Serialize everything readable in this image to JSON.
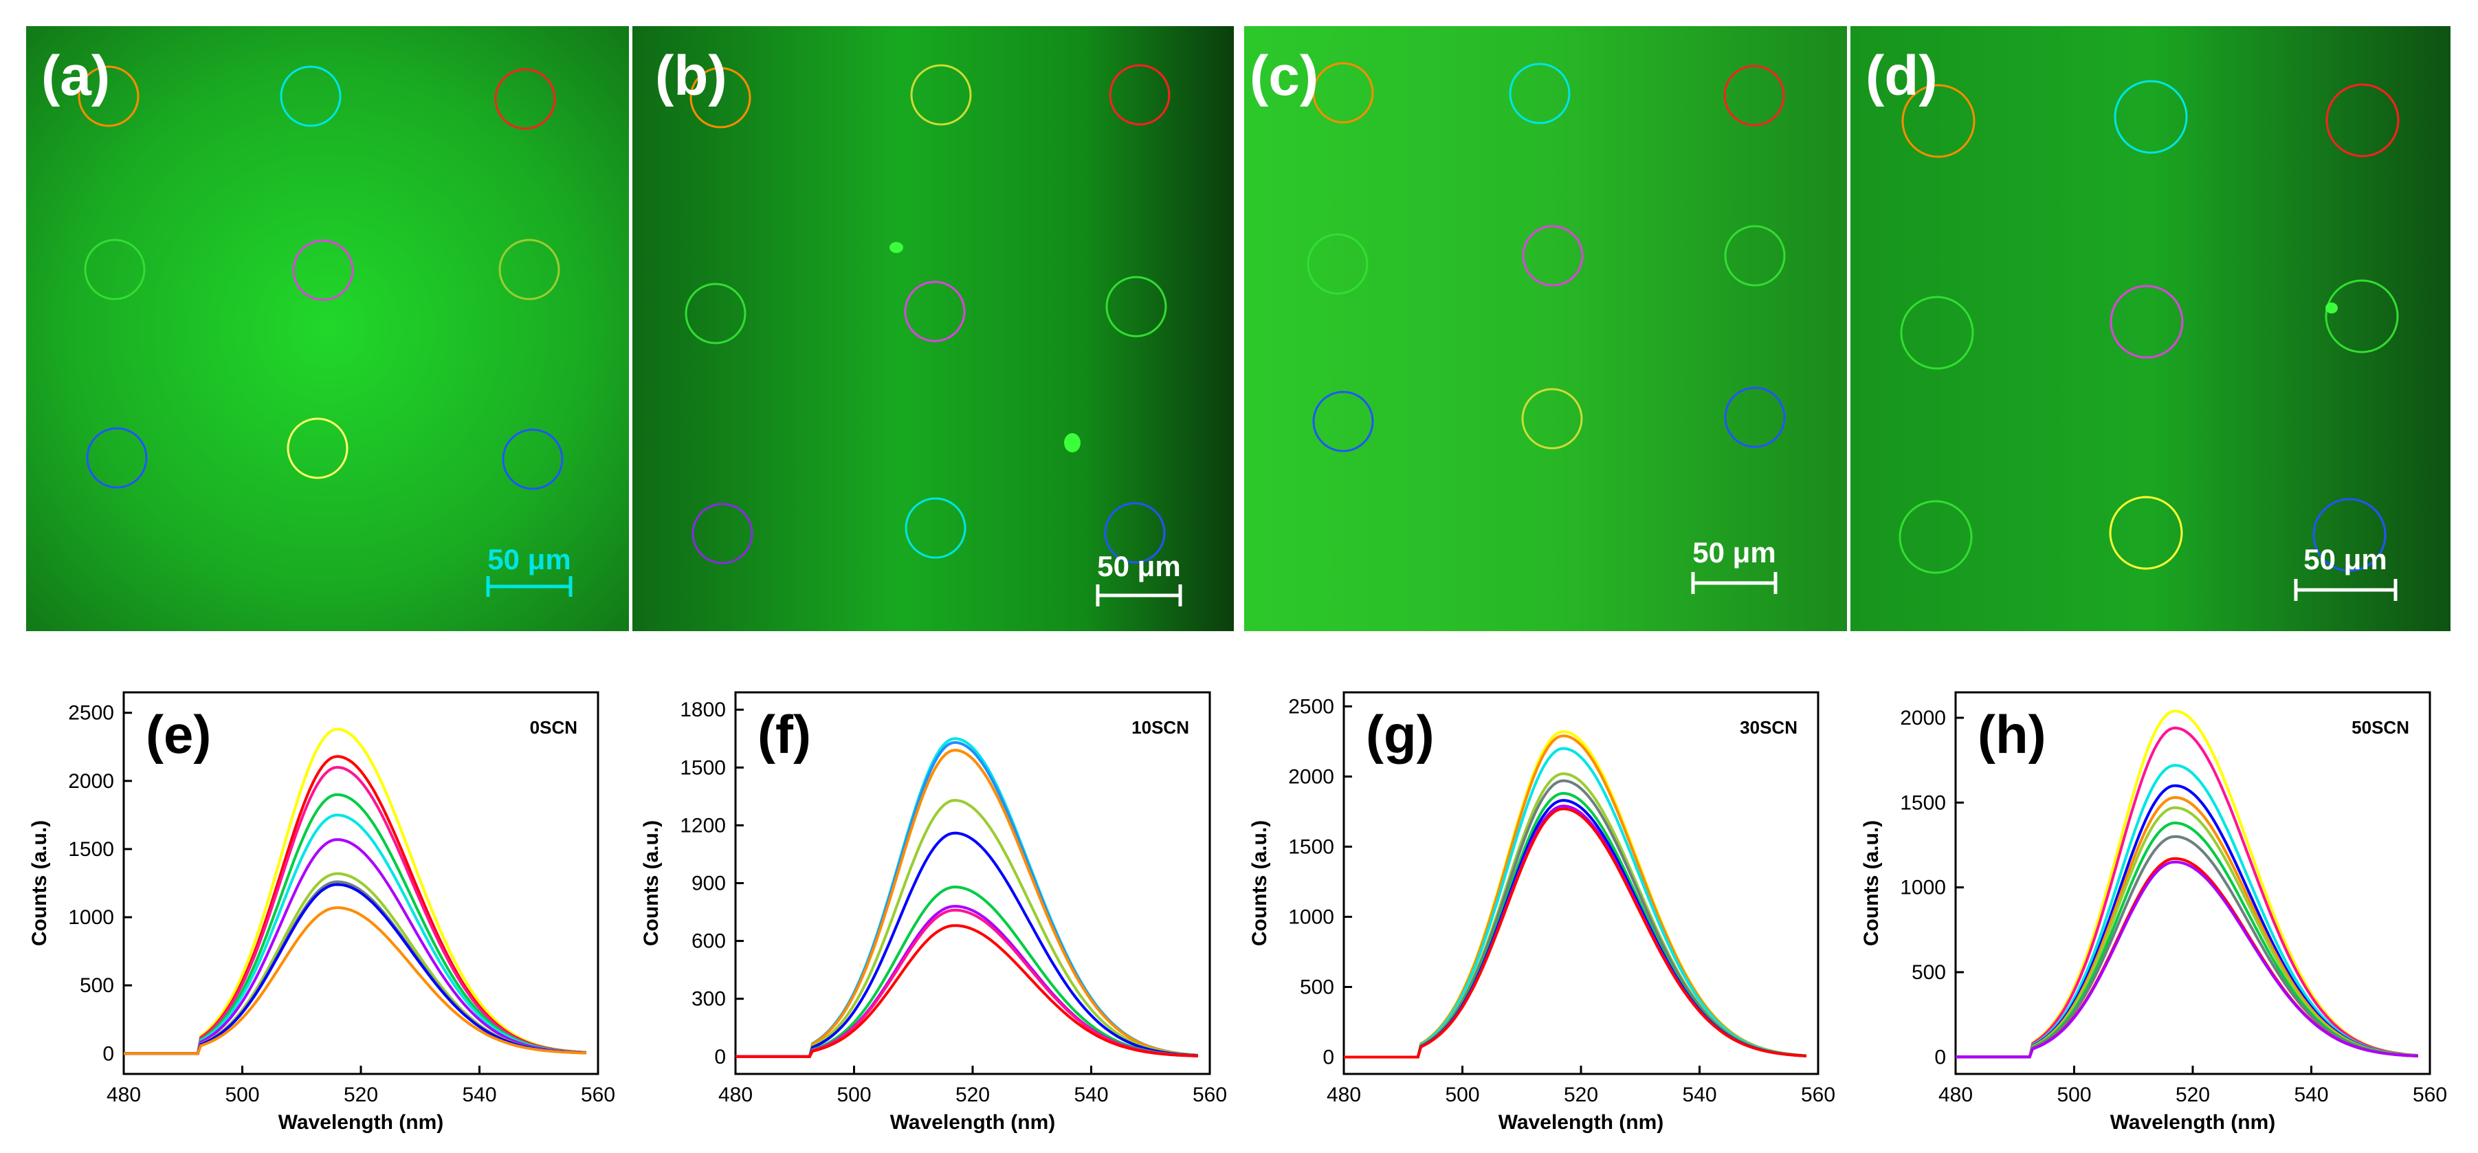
{
  "colors": {
    "frame_a": "#1e7d24",
    "frame_b": "#145c1a",
    "frame_c": "#2e9a2e",
    "frame_d": "#1a6a1e",
    "roi": [
      "#ff8c00",
      "#00e5e5",
      "#ff2020",
      "#33dd33",
      "#dd44dd",
      "#9acd32",
      "#2255ff",
      "#ffff33",
      "#8a2be2"
    ],
    "spectra": [
      "#ffff00",
      "#ff0000",
      "#ff1493",
      "#00cc44",
      "#00e5e5",
      "#aa00ff",
      "#0000ff",
      "#9acd32",
      "#6e7f80",
      "#ff8c00"
    ]
  },
  "images": [
    {
      "label": "(a)",
      "scale": "50 μm"
    },
    {
      "label": "(b)",
      "scale": "50 μm"
    },
    {
      "label": "(c)",
      "scale": "50 μm"
    },
    {
      "label": "(d)",
      "scale": "50 μm"
    }
  ],
  "chart_data": [
    {
      "type": "line",
      "panel": "(e)",
      "annotation": "0SCN",
      "xlabel": "Wavelength (nm)",
      "ylabel": "Counts (a.u.)",
      "xlim": [
        480,
        560
      ],
      "ylim": [
        -150,
        2650
      ],
      "xticks": [
        480,
        500,
        520,
        540,
        560
      ],
      "yticks": [
        0,
        500,
        1000,
        1500,
        2000,
        2500
      ],
      "peak_x": 516,
      "series": [
        {
          "name": "yellow",
          "peak": 2380
        },
        {
          "name": "red",
          "peak": 2180
        },
        {
          "name": "magenta",
          "peak": 2100
        },
        {
          "name": "green",
          "peak": 1900
        },
        {
          "name": "cyan",
          "peak": 1750
        },
        {
          "name": "purple",
          "peak": 1570
        },
        {
          "name": "olive",
          "peak": 1320
        },
        {
          "name": "gray",
          "peak": 1260
        },
        {
          "name": "blue",
          "peak": 1240
        },
        {
          "name": "orange",
          "peak": 1070
        }
      ]
    },
    {
      "type": "line",
      "panel": "(f)",
      "annotation": "10SCN",
      "xlabel": "Wavelength (nm)",
      "ylabel": "Counts (a.u.)",
      "xlim": [
        480,
        560
      ],
      "ylim": [
        -90,
        1890
      ],
      "xticks": [
        480,
        500,
        520,
        540,
        560
      ],
      "yticks": [
        0,
        300,
        600,
        900,
        1200,
        1500,
        1800
      ],
      "peak_x": 517,
      "series": [
        {
          "name": "cyan",
          "peak": 1650
        },
        {
          "name": "blue-light",
          "peak": 1630
        },
        {
          "name": "orange",
          "peak": 1590
        },
        {
          "name": "olive",
          "peak": 1330
        },
        {
          "name": "blue",
          "peak": 1160
        },
        {
          "name": "green",
          "peak": 880
        },
        {
          "name": "purple",
          "peak": 780
        },
        {
          "name": "magenta",
          "peak": 760
        },
        {
          "name": "red",
          "peak": 680
        }
      ]
    },
    {
      "type": "line",
      "panel": "(g)",
      "annotation": "30SCN",
      "xlabel": "Wavelength (nm)",
      "ylabel": "Counts (a.u.)",
      "xlim": [
        480,
        560
      ],
      "ylim": [
        -120,
        2600
      ],
      "xticks": [
        480,
        500,
        520,
        540,
        560
      ],
      "yticks": [
        0,
        500,
        1000,
        1500,
        2000,
        2500
      ],
      "peak_x": 517,
      "series": [
        {
          "name": "yellow",
          "peak": 2320
        },
        {
          "name": "orange",
          "peak": 2290
        },
        {
          "name": "cyan",
          "peak": 2200
        },
        {
          "name": "olive",
          "peak": 2020
        },
        {
          "name": "gray",
          "peak": 1970
        },
        {
          "name": "green",
          "peak": 1880
        },
        {
          "name": "blue",
          "peak": 1830
        },
        {
          "name": "purple",
          "peak": 1790
        },
        {
          "name": "red",
          "peak": 1770
        }
      ]
    },
    {
      "type": "line",
      "panel": "(h)",
      "annotation": "50SCN",
      "xlabel": "Wavelength (nm)",
      "ylabel": "Counts (a.u.)",
      "xlim": [
        480,
        560
      ],
      "ylim": [
        -100,
        2150
      ],
      "xticks": [
        480,
        500,
        520,
        540,
        560
      ],
      "yticks": [
        0,
        500,
        1000,
        1500,
        2000
      ],
      "peak_x": 517,
      "series": [
        {
          "name": "yellow",
          "peak": 2040
        },
        {
          "name": "magenta",
          "peak": 1940
        },
        {
          "name": "cyan",
          "peak": 1720
        },
        {
          "name": "blue",
          "peak": 1600
        },
        {
          "name": "orange",
          "peak": 1530
        },
        {
          "name": "olive",
          "peak": 1470
        },
        {
          "name": "green",
          "peak": 1380
        },
        {
          "name": "gray",
          "peak": 1300
        },
        {
          "name": "red",
          "peak": 1170
        },
        {
          "name": "purple",
          "peak": 1150
        }
      ]
    }
  ]
}
